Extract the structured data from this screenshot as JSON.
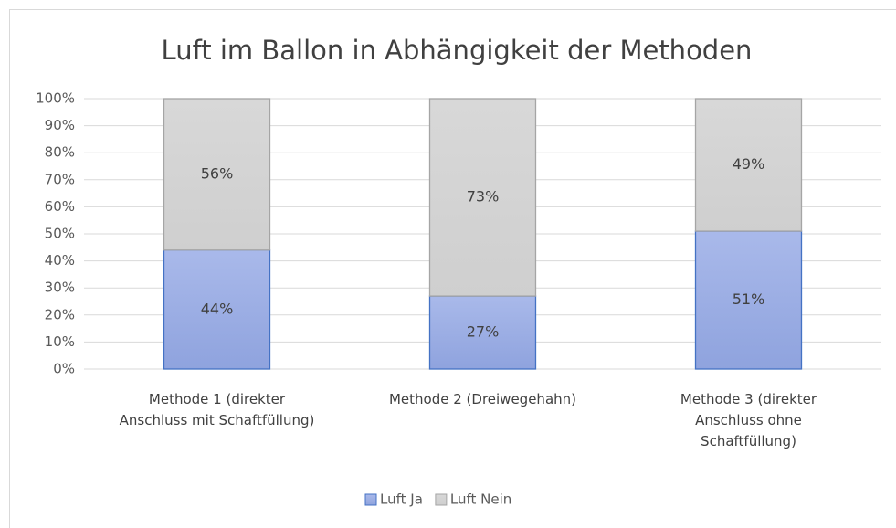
{
  "chart_data": {
    "type": "stacked_bar",
    "title": "Luft im Ballon in Abhängigkeit der Methoden",
    "categories": [
      "Methode 1 (direkter\nAnschluss mit Schaftfüllung)",
      "Methode 2 (Dreiwegehahn)",
      "Methode 3 (direkter\nAnschluss ohne\nSchaftfüllung)"
    ],
    "series": [
      {
        "name": "Luft Ja",
        "color": "#8fa3de",
        "values": [
          44,
          27,
          51
        ],
        "value_labels": [
          "44%",
          "27%",
          "51%"
        ]
      },
      {
        "name": "Luft Nein",
        "color": "#cfcfcf",
        "values": [
          56,
          73,
          49
        ],
        "value_labels": [
          "56%",
          "73%",
          "49%"
        ]
      }
    ],
    "ylim": [
      0,
      100
    ],
    "yticks": [
      {
        "value": 0,
        "label": "0%"
      },
      {
        "value": 10,
        "label": "10%"
      },
      {
        "value": 20,
        "label": "20%"
      },
      {
        "value": 30,
        "label": "30%"
      },
      {
        "value": 40,
        "label": "40%"
      },
      {
        "value": 50,
        "label": "50%"
      },
      {
        "value": 60,
        "label": "60%"
      },
      {
        "value": 70,
        "label": "70%"
      },
      {
        "value": 80,
        "label": "80%"
      },
      {
        "value": 90,
        "label": "90%"
      },
      {
        "value": 100,
        "label": "100%"
      }
    ],
    "grid": true,
    "legend": "bottom"
  }
}
